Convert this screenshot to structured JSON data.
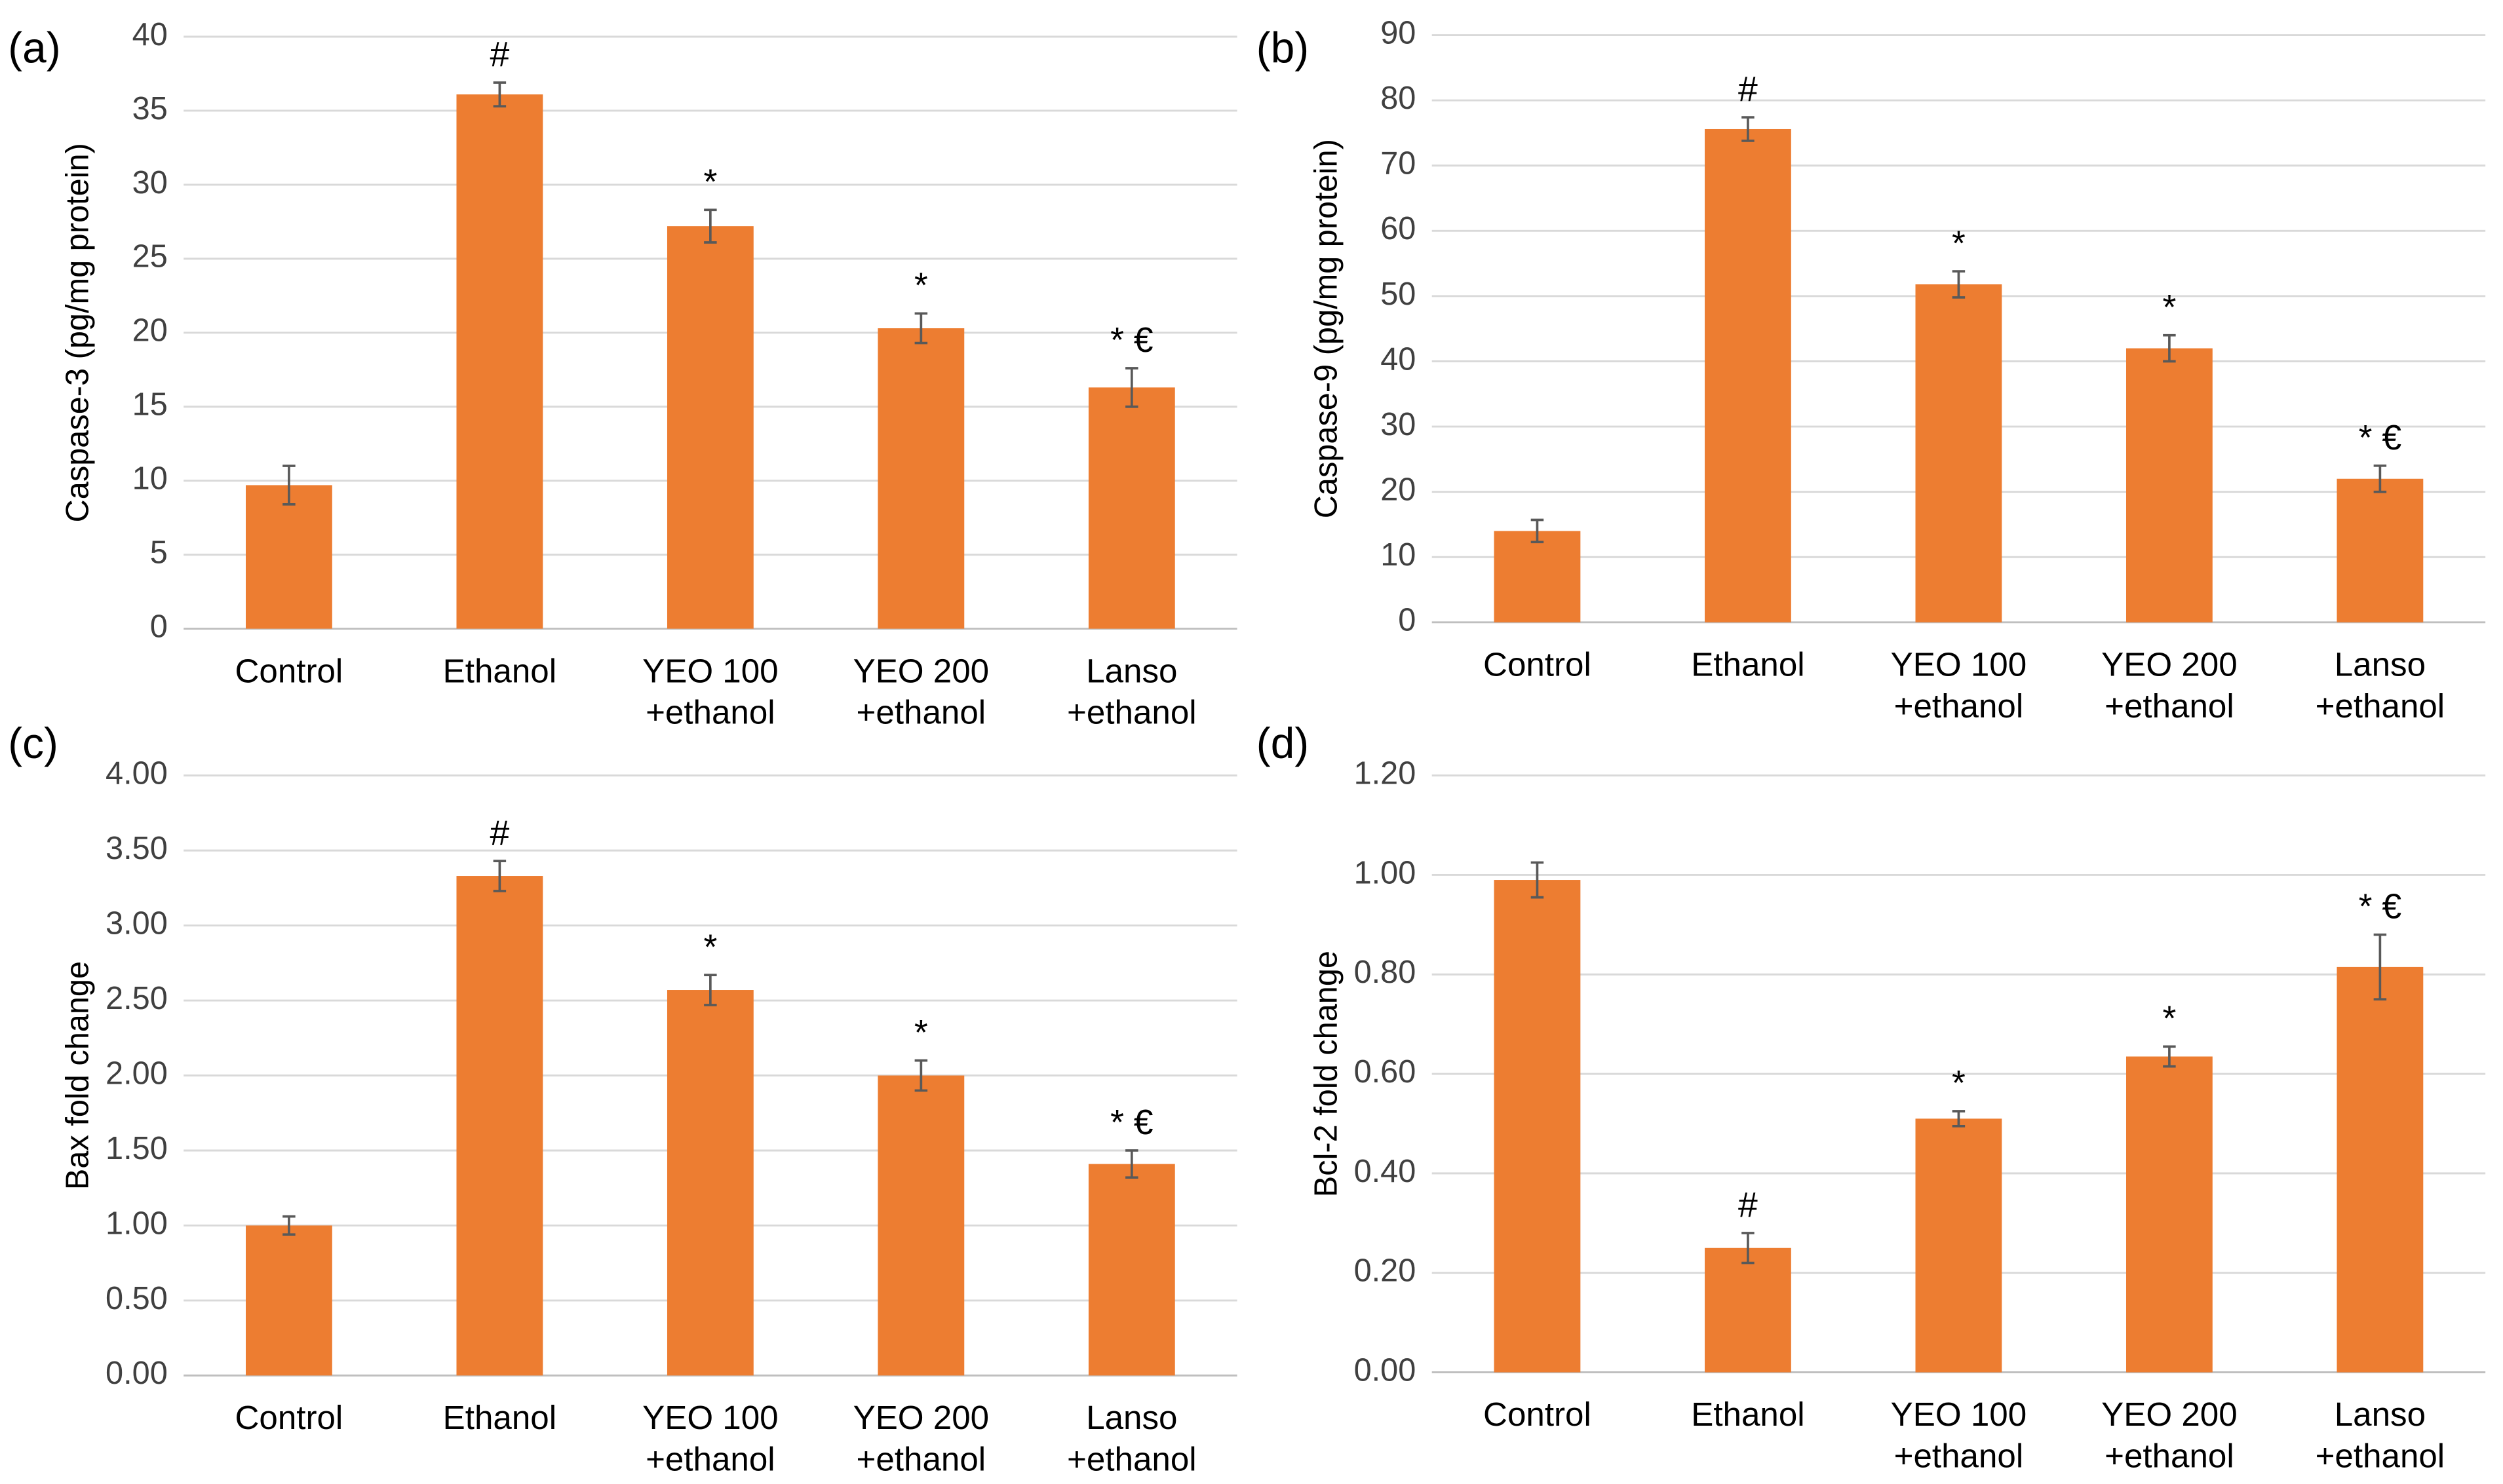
{
  "chart_data": [
    {
      "type": "bar",
      "panel_label": "(a)",
      "y_label": "Caspase-3 (pg/mg protein)",
      "categories": [
        [
          "Control"
        ],
        [
          "Ethanol"
        ],
        [
          "YEO 100",
          "+ethanol"
        ],
        [
          "YEO 200",
          "+ethanol"
        ],
        [
          "Lanso",
          "+ethanol"
        ]
      ],
      "values": [
        9.7,
        36.1,
        27.2,
        20.3,
        16.3
      ],
      "errors": [
        1.3,
        0.8,
        1.1,
        1.0,
        1.3
      ],
      "annotations": [
        null,
        "#",
        "*",
        "*",
        "* €"
      ],
      "color": "#ed7d31",
      "error_color": "#595959",
      "ylim": [
        0,
        40
      ],
      "yticks": [
        0,
        5,
        10,
        15,
        20,
        25,
        30,
        35,
        40
      ],
      "grid": true
    },
    {
      "type": "bar",
      "panel_label": "(b)",
      "y_label": "Caspase-9 (pg/mg protein)",
      "categories": [
        [
          "Control"
        ],
        [
          "Ethanol"
        ],
        [
          "YEO 100",
          "+ethanol"
        ],
        [
          "YEO 200",
          "+ethanol"
        ],
        [
          "Lanso",
          "+ethanol"
        ]
      ],
      "values": [
        14,
        75.6,
        51.8,
        42,
        22
      ],
      "errors": [
        1.7,
        1.8,
        2.0,
        2.0,
        2.0
      ],
      "annotations": [
        null,
        "#",
        "*",
        "*",
        "* €"
      ],
      "color": "#ed7d31",
      "error_color": "#595959",
      "ylim": [
        0,
        90
      ],
      "yticks": [
        0,
        10,
        20,
        30,
        40,
        50,
        60,
        70,
        80,
        90
      ],
      "grid": true
    },
    {
      "type": "bar",
      "panel_label": "(c)",
      "y_label": "Bax fold change",
      "categories": [
        [
          "Control"
        ],
        [
          "Ethanol"
        ],
        [
          "YEO 100",
          "+ethanol"
        ],
        [
          "YEO 200",
          "+ethanol"
        ],
        [
          "Lanso",
          "+ethanol"
        ]
      ],
      "values": [
        1.0,
        3.33,
        2.57,
        2.0,
        1.41
      ],
      "errors": [
        0.06,
        0.1,
        0.1,
        0.1,
        0.09
      ],
      "annotations": [
        null,
        "#",
        "*",
        "*",
        "* €"
      ],
      "color": "#ed7d31",
      "error_color": "#595959",
      "ylim": [
        0,
        4
      ],
      "yticks": [
        {
          "value": 0,
          "label": "0.00"
        },
        {
          "value": 0.5,
          "label": "0.50"
        },
        {
          "value": 1,
          "label": "1.00"
        },
        {
          "value": 1.5,
          "label": "1.50"
        },
        {
          "value": 2,
          "label": "2.00"
        },
        {
          "value": 2.5,
          "label": "2.50"
        },
        {
          "value": 3,
          "label": "3.00"
        },
        {
          "value": 3.5,
          "label": "3.50"
        },
        {
          "value": 4,
          "label": "4.00"
        }
      ],
      "grid": true
    },
    {
      "type": "bar",
      "panel_label": "(d)",
      "y_label": "Bcl-2 fold change",
      "categories": [
        [
          "Control"
        ],
        [
          "Ethanol"
        ],
        [
          "YEO 100",
          "+ethanol"
        ],
        [
          "YEO 200",
          "+ethanol"
        ],
        [
          "Lanso",
          "+ethanol"
        ]
      ],
      "values": [
        0.99,
        0.25,
        0.51,
        0.635,
        0.815
      ],
      "errors": [
        0.035,
        0.03,
        0.015,
        0.02,
        0.065
      ],
      "annotations": [
        null,
        "#",
        "*",
        "*",
        "* €"
      ],
      "color": "#ed7d31",
      "error_color": "#595959",
      "ylim": [
        0,
        1.2
      ],
      "yticks": [
        {
          "value": 0,
          "label": "0.00"
        },
        {
          "value": 0.2,
          "label": "0.20"
        },
        {
          "value": 0.4,
          "label": "0.40"
        },
        {
          "value": 0.6,
          "label": "0.60"
        },
        {
          "value": 0.8,
          "label": "0.80"
        },
        {
          "value": 1,
          "label": "1.00"
        },
        {
          "value": 1.2,
          "label": "1.20"
        }
      ],
      "grid": true
    }
  ]
}
